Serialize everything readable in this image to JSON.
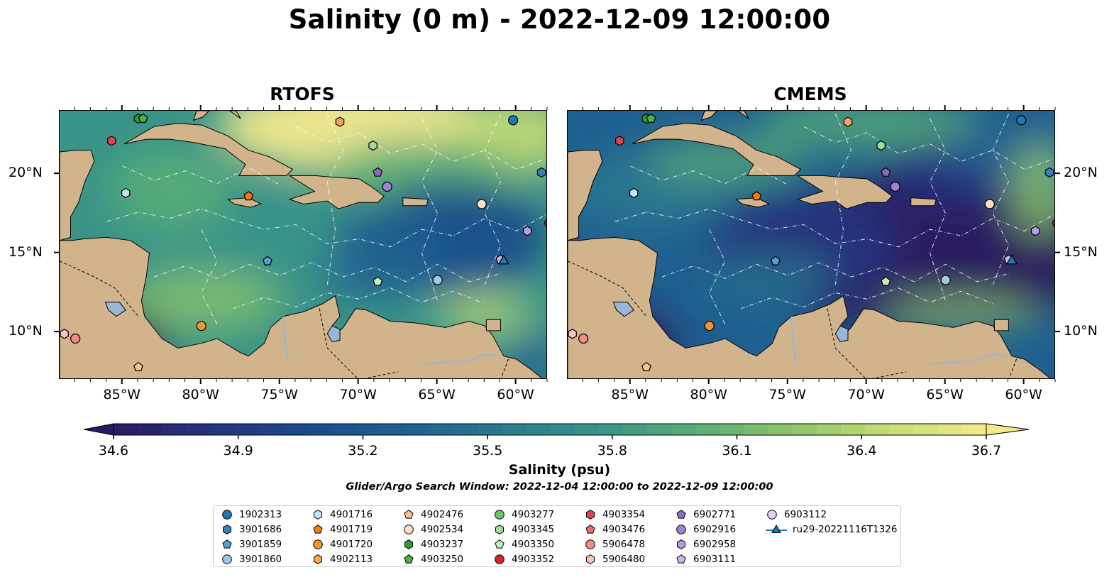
{
  "title": "Salinity (0 m) - 2022-12-09 12:00:00",
  "panels": [
    {
      "id": "rtofs",
      "title": "RTOFS"
    },
    {
      "id": "cmems",
      "title": "CMEMS"
    }
  ],
  "axes": {
    "lon_ticks": [
      "85°W",
      "80°W",
      "75°W",
      "70°W",
      "65°W",
      "60°W"
    ],
    "lat_ticks": [
      "20°N",
      "15°N",
      "10°N"
    ],
    "lon_range": [
      -89,
      -58
    ],
    "lat_range": [
      7,
      24
    ]
  },
  "colorbar": {
    "label": "Salinity (psu)",
    "min": 34.6,
    "max": 36.7,
    "extend": "both",
    "ticks": [
      "34.6",
      "34.9",
      "35.2",
      "35.5",
      "35.8",
      "36.1",
      "36.4",
      "36.7"
    ],
    "colormap": [
      "#2a1b5e",
      "#26337f",
      "#1a4a8c",
      "#1f6090",
      "#2a7a8e",
      "#3a9488",
      "#58ad77",
      "#8cc56a",
      "#c5dd74",
      "#f4ea8d"
    ]
  },
  "search_window": "Glider/Argo Search Window: 2022-12-04 12:00:00 to 2022-12-09 12:00:00",
  "colors": {
    "land": "#d2b48c",
    "lakes_rivers": "#99b6d8",
    "contours": "#ffffff"
  },
  "legend": [
    {
      "label": "1902313",
      "marker": "circle",
      "color": "#1f77b4"
    },
    {
      "label": "3901686",
      "marker": "hexagon",
      "color": "#3a7fbd"
    },
    {
      "label": "3901859",
      "marker": "pentagon",
      "color": "#5a9bd0"
    },
    {
      "label": "3901860",
      "marker": "circle",
      "color": "#9ecae1"
    },
    {
      "label": "4901716",
      "marker": "hexagon",
      "color": "#c6e3f5"
    },
    {
      "label": "4901719",
      "marker": "pentagon",
      "color": "#f27c16"
    },
    {
      "label": "4901720",
      "marker": "circle",
      "color": "#f5922e"
    },
    {
      "label": "4902113",
      "marker": "hexagon",
      "color": "#f7a35c"
    },
    {
      "label": "4902476",
      "marker": "pentagon",
      "color": "#fbc08f"
    },
    {
      "label": "4902534",
      "marker": "circle",
      "color": "#fde0c0"
    },
    {
      "label": "4903237",
      "marker": "hexagon",
      "color": "#2ca02c"
    },
    {
      "label": "4903250",
      "marker": "pentagon",
      "color": "#48b348"
    },
    {
      "label": "4903277",
      "marker": "circle",
      "color": "#6cc56c"
    },
    {
      "label": "4903345",
      "marker": "hexagon",
      "color": "#a1dba1"
    },
    {
      "label": "4903350",
      "marker": "pentagon",
      "color": "#c8ecc2"
    },
    {
      "label": "4903352",
      "marker": "circle",
      "color": "#d62728"
    },
    {
      "label": "4903354",
      "marker": "hexagon",
      "color": "#e0444a"
    },
    {
      "label": "4903476",
      "marker": "pentagon",
      "color": "#eb6b6e"
    },
    {
      "label": "5906478",
      "marker": "circle",
      "color": "#f28b86"
    },
    {
      "label": "5906480",
      "marker": "hexagon",
      "color": "#fbc3bd"
    },
    {
      "label": "6902771",
      "marker": "pentagon",
      "color": "#8c6bbd"
    },
    {
      "label": "6902916",
      "marker": "circle",
      "color": "#a083cc"
    },
    {
      "label": "6902958",
      "marker": "hexagon",
      "color": "#b79ce0"
    },
    {
      "label": "6903111",
      "marker": "pentagon",
      "color": "#cfb3ee"
    },
    {
      "label": "6903112",
      "marker": "circle",
      "color": "#e4cff7"
    },
    {
      "label": "ru29-20221116T1326",
      "marker": "triangle-line",
      "color": "#1f77b4"
    }
  ],
  "observations": [
    {
      "id": "1902313",
      "lon": -60.2,
      "lat": 23.4
    },
    {
      "id": "3901686",
      "lon": -58.4,
      "lat": 20.1
    },
    {
      "id": "3901859",
      "lon": -75.8,
      "lat": 14.5
    },
    {
      "id": "3901860",
      "lon": -65.0,
      "lat": 13.3
    },
    {
      "id": "4901716",
      "lon": -84.8,
      "lat": 18.8
    },
    {
      "id": "4901719",
      "lon": -77.0,
      "lat": 18.6
    },
    {
      "id": "4901720",
      "lon": -80.0,
      "lat": 10.4
    },
    {
      "id": "4902113",
      "lon": -71.2,
      "lat": 23.3
    },
    {
      "id": "4902476",
      "lon": -84.0,
      "lat": 7.8
    },
    {
      "id": "4902534",
      "lon": -62.2,
      "lat": 18.1
    },
    {
      "id": "4903237",
      "lon": -84.0,
      "lat": 23.5
    },
    {
      "id": "4903250",
      "lon": -83.7,
      "lat": 23.5
    },
    {
      "id": "4903345",
      "lon": -69.1,
      "lat": 21.8
    },
    {
      "id": "4903350",
      "lon": -68.8,
      "lat": 13.2
    },
    {
      "id": "4903352",
      "lon": -57.9,
      "lat": 16.9
    },
    {
      "id": "4903354",
      "lon": -85.7,
      "lat": 22.1
    },
    {
      "id": "5906478",
      "lon": -88.0,
      "lat": 9.6
    },
    {
      "id": "5906480",
      "lon": -88.7,
      "lat": 9.9
    },
    {
      "id": "6902771",
      "lon": -68.8,
      "lat": 20.1
    },
    {
      "id": "6902916",
      "lon": -68.2,
      "lat": 19.2
    },
    {
      "id": "6902958",
      "lon": -59.3,
      "lat": 16.4
    },
    {
      "id": "6903111",
      "lon": -61.0,
      "lat": 14.6
    },
    {
      "id": "ru29-20221116T1326",
      "lon": -60.8,
      "lat": 14.5
    }
  ]
}
